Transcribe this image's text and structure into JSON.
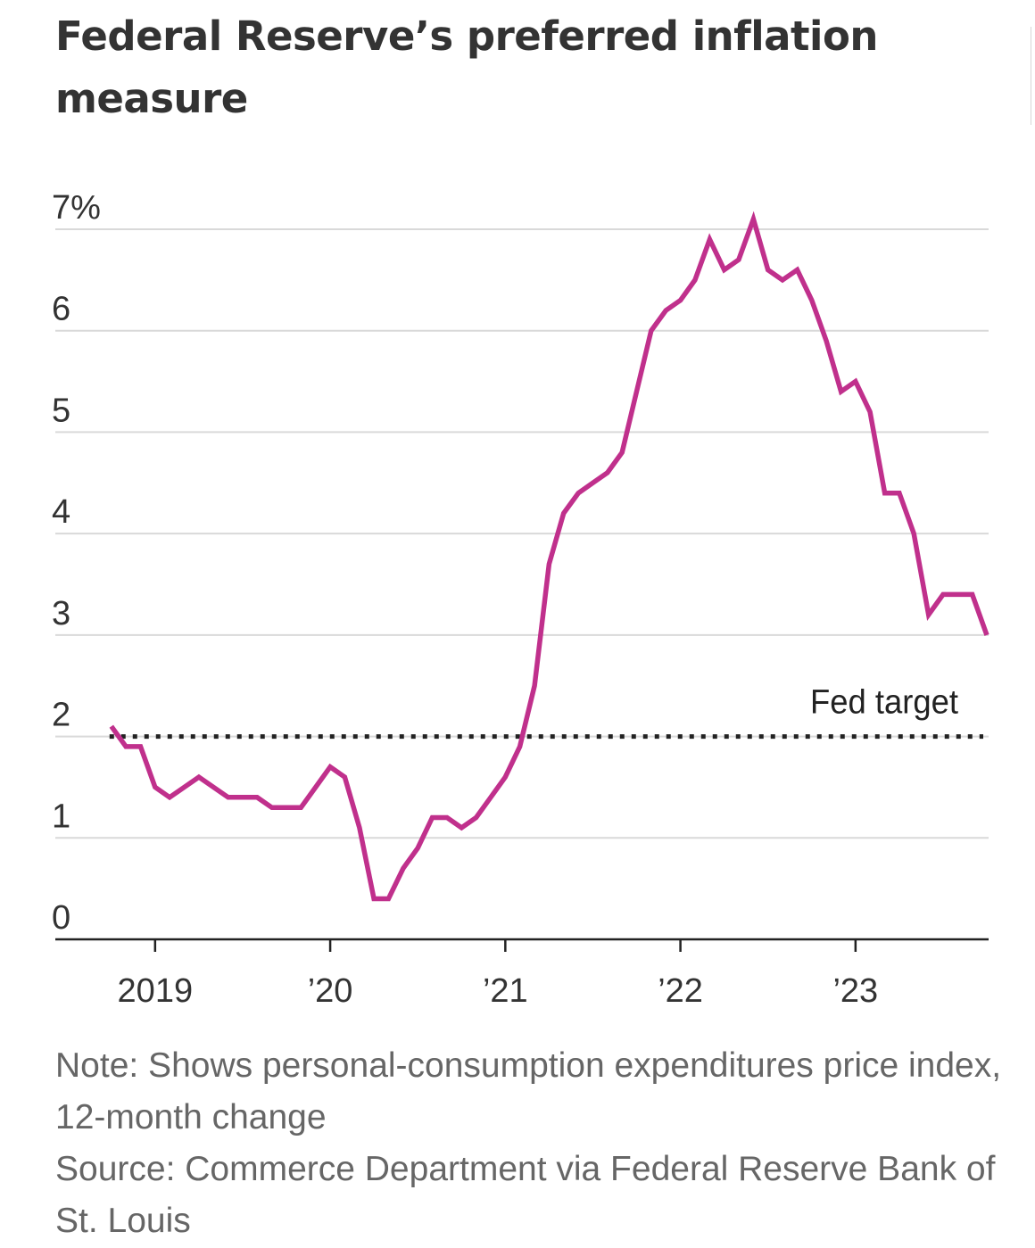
{
  "title": "Federal Reserve’s preferred inflation measure",
  "chart_data": {
    "type": "line",
    "title": "Federal Reserve’s preferred inflation measure",
    "xlabel": "",
    "ylabel": "",
    "ylim": [
      0,
      7
    ],
    "xlim": [
      2018.75,
      2023.75
    ],
    "yticks": [
      {
        "value": 0,
        "label": "0"
      },
      {
        "value": 1,
        "label": "1"
      },
      {
        "value": 2,
        "label": "2"
      },
      {
        "value": 3,
        "label": "3"
      },
      {
        "value": 4,
        "label": "4"
      },
      {
        "value": 5,
        "label": "5"
      },
      {
        "value": 6,
        "label": "6"
      },
      {
        "value": 7,
        "label": "7%"
      }
    ],
    "xticks": [
      {
        "value": 2019,
        "label": "2019"
      },
      {
        "value": 2020,
        "label": "’20"
      },
      {
        "value": 2021,
        "label": "’21"
      },
      {
        "value": 2022,
        "label": "’22"
      },
      {
        "value": 2023,
        "label": "’23"
      }
    ],
    "grid": true,
    "series": [
      {
        "name": "PCE price index, 12-month change",
        "color": "#c0308c",
        "points": [
          [
            2018.75,
            2.1
          ],
          [
            2018.833,
            1.9
          ],
          [
            2018.917,
            1.9
          ],
          [
            2019.0,
            1.5
          ],
          [
            2019.083,
            1.4
          ],
          [
            2019.167,
            1.5
          ],
          [
            2019.25,
            1.6
          ],
          [
            2019.333,
            1.5
          ],
          [
            2019.417,
            1.4
          ],
          [
            2019.5,
            1.4
          ],
          [
            2019.583,
            1.4
          ],
          [
            2019.667,
            1.3
          ],
          [
            2019.75,
            1.3
          ],
          [
            2019.833,
            1.3
          ],
          [
            2019.917,
            1.5
          ],
          [
            2020.0,
            1.7
          ],
          [
            2020.083,
            1.6
          ],
          [
            2020.167,
            1.1
          ],
          [
            2020.25,
            0.4
          ],
          [
            2020.333,
            0.4
          ],
          [
            2020.417,
            0.7
          ],
          [
            2020.5,
            0.9
          ],
          [
            2020.583,
            1.2
          ],
          [
            2020.667,
            1.2
          ],
          [
            2020.75,
            1.1
          ],
          [
            2020.833,
            1.2
          ],
          [
            2020.917,
            1.4
          ],
          [
            2021.0,
            1.6
          ],
          [
            2021.083,
            1.9
          ],
          [
            2021.167,
            2.5
          ],
          [
            2021.25,
            3.7
          ],
          [
            2021.333,
            4.2
          ],
          [
            2021.417,
            4.4
          ],
          [
            2021.5,
            4.5
          ],
          [
            2021.583,
            4.6
          ],
          [
            2021.667,
            4.8
          ],
          [
            2021.75,
            5.4
          ],
          [
            2021.833,
            6.0
          ],
          [
            2021.917,
            6.2
          ],
          [
            2022.0,
            6.3
          ],
          [
            2022.083,
            6.5
          ],
          [
            2022.167,
            6.9
          ],
          [
            2022.25,
            6.6
          ],
          [
            2022.333,
            6.7
          ],
          [
            2022.417,
            7.1
          ],
          [
            2022.5,
            6.6
          ],
          [
            2022.583,
            6.5
          ],
          [
            2022.667,
            6.6
          ],
          [
            2022.75,
            6.3
          ],
          [
            2022.833,
            5.9
          ],
          [
            2022.917,
            5.4
          ],
          [
            2023.0,
            5.5
          ],
          [
            2023.083,
            5.2
          ],
          [
            2023.167,
            4.4
          ],
          [
            2023.25,
            4.4
          ],
          [
            2023.333,
            4.0
          ],
          [
            2023.417,
            3.2
          ],
          [
            2023.5,
            3.4
          ],
          [
            2023.583,
            3.4
          ],
          [
            2023.667,
            3.4
          ],
          [
            2023.75,
            3.0
          ]
        ]
      }
    ],
    "reference_lines": [
      {
        "value": 2,
        "label": "Fed target",
        "style": "dotted",
        "color": "#222222"
      }
    ]
  },
  "notes": {
    "note": "Note: Shows personal-consumption expenditures price index, 12-month change",
    "source": "Source: Commerce Department via Federal Reserve Bank of St. Louis"
  }
}
